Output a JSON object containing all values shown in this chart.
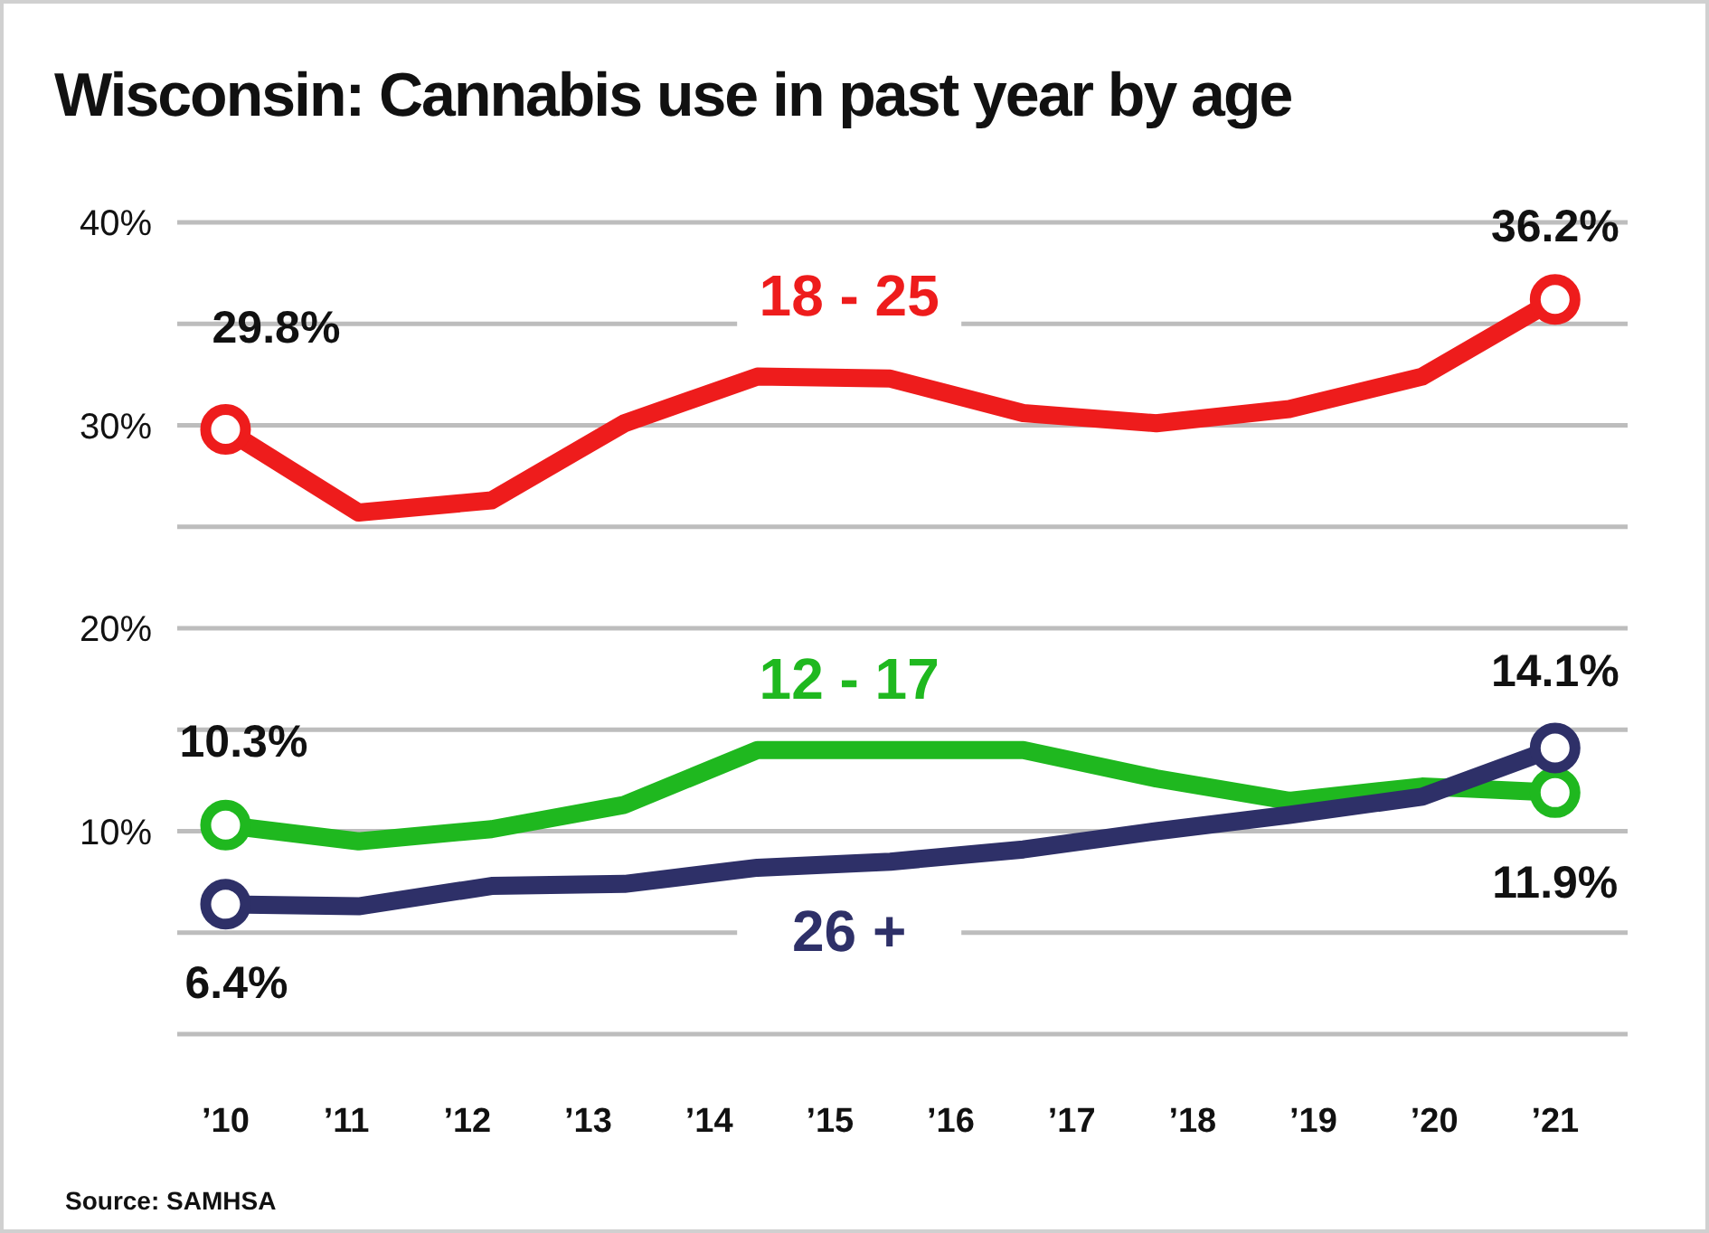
{
  "chart_data": {
    "type": "line",
    "title": "Wisconsin: Cannabis use in past year by age",
    "x": [
      2010,
      2011.1,
      2012.2,
      2013.3,
      2014.4,
      2015.5,
      2016.6,
      2017.7,
      2018.8,
      2019.9,
      2021
    ],
    "xlim": [
      2009.6,
      2021.6
    ],
    "xticks": [
      {
        "value": 2010,
        "label": "’10"
      },
      {
        "value": 2011,
        "label": "’11"
      },
      {
        "value": 2012,
        "label": "’12"
      },
      {
        "value": 2013,
        "label": "’13"
      },
      {
        "value": 2014,
        "label": "’14"
      },
      {
        "value": 2015,
        "label": "’15"
      },
      {
        "value": 2016,
        "label": "’16"
      },
      {
        "value": 2017,
        "label": "’17"
      },
      {
        "value": 2018,
        "label": "’18"
      },
      {
        "value": 2019,
        "label": "’19"
      },
      {
        "value": 2020,
        "label": "’20"
      },
      {
        "value": 2021,
        "label": "’21"
      }
    ],
    "ylim": [
      0,
      40
    ],
    "yticks": [
      {
        "value": 0,
        "label": null
      },
      {
        "value": 5,
        "label": null
      },
      {
        "value": 10,
        "label": "10%"
      },
      {
        "value": 15,
        "label": null
      },
      {
        "value": 20,
        "label": "20%"
      },
      {
        "value": 25,
        "label": null
      },
      {
        "value": 30,
        "label": "30%"
      },
      {
        "value": 35,
        "label": null
      },
      {
        "value": 40,
        "label": "40%"
      }
    ],
    "grid": "y",
    "series": [
      {
        "name": "18 - 25",
        "color": "#ee1c1c",
        "values": [
          29.8,
          25.7,
          26.3,
          30.1,
          32.4,
          32.3,
          30.6,
          30.1,
          30.8,
          32.4,
          36.2
        ],
        "value_labels": [
          "29.8%",
          null,
          null,
          null,
          null,
          null,
          null,
          null,
          null,
          null,
          "36.2%"
        ]
      },
      {
        "name": "12 - 17",
        "color": "#1fb81f",
        "values": [
          10.3,
          9.5,
          10.1,
          11.3,
          14.0,
          14.0,
          14.0,
          12.6,
          11.5,
          12.2,
          11.9
        ],
        "value_labels": [
          "10.3%",
          null,
          null,
          null,
          null,
          null,
          null,
          null,
          null,
          null,
          "11.9%"
        ]
      },
      {
        "name": "26 +",
        "color": "#2e3068",
        "values": [
          6.4,
          6.3,
          7.3,
          7.4,
          8.2,
          8.5,
          9.1,
          10.0,
          10.8,
          11.7,
          14.1
        ],
        "value_labels": [
          "6.4%",
          null,
          null,
          null,
          null,
          null,
          null,
          null,
          null,
          null,
          "14.1%"
        ]
      }
    ],
    "annotations": [
      "Source: SAMHSA"
    ]
  }
}
